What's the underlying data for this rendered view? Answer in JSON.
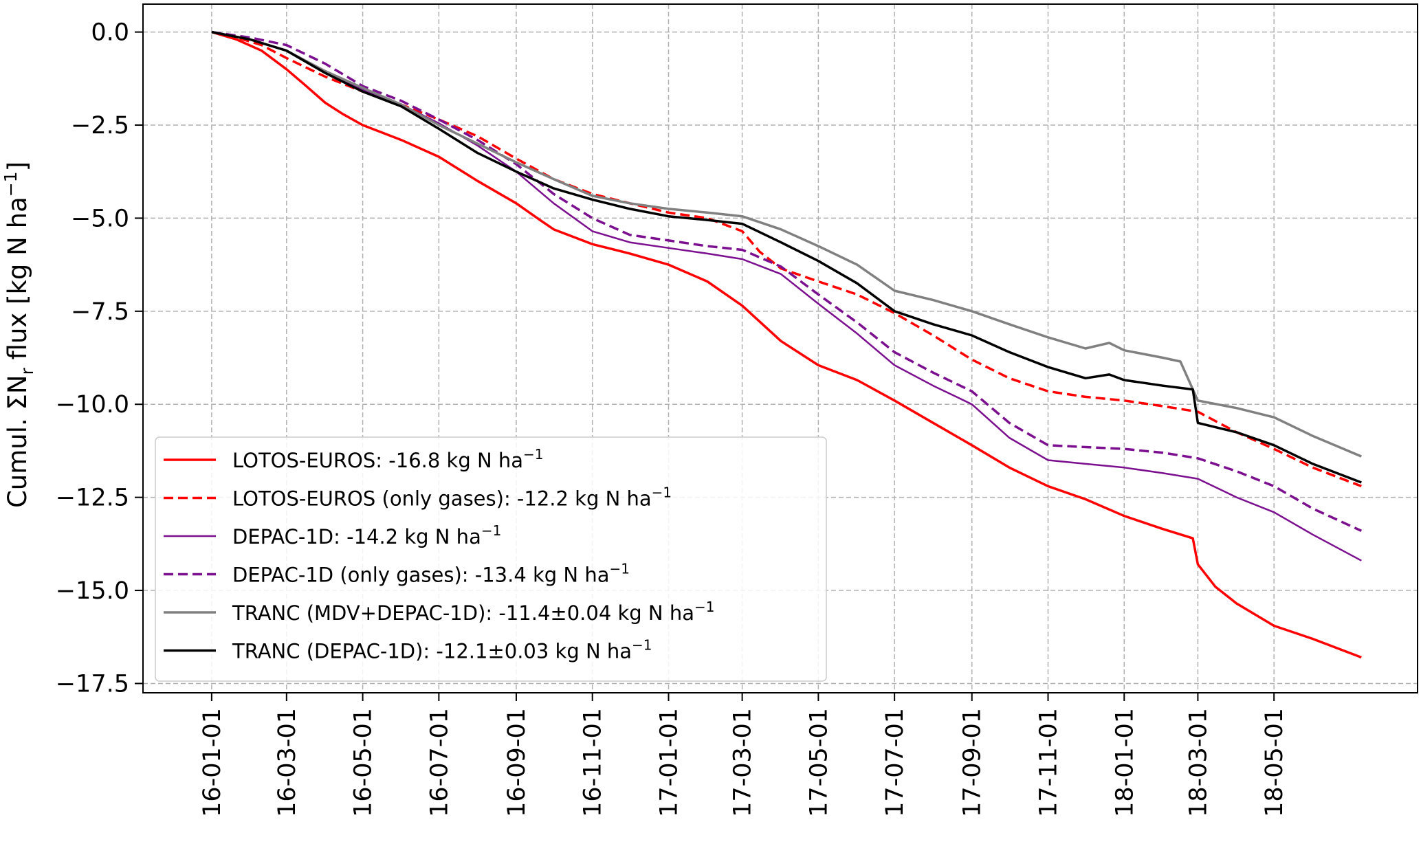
{
  "chart_data": {
    "type": "line",
    "title": "",
    "xlabel": "",
    "ylabel_parts": {
      "prefix": "Cumul. ΣN",
      "sub": "r",
      "middle": " flux [kg N ha",
      "sup": "−1",
      "suffix": "]"
    },
    "ylim": [
      -17.75,
      0.75
    ],
    "xlim": [
      "2015-11-07",
      "2018-08-24"
    ],
    "grid": true,
    "legend_placement": "lower-left",
    "y_ticks": [
      {
        "value": 0.0,
        "label": "0.0"
      },
      {
        "value": -2.5,
        "label": "−2.5"
      },
      {
        "value": -5.0,
        "label": "−5.0"
      },
      {
        "value": -7.5,
        "label": "−7.5"
      },
      {
        "value": -10.0,
        "label": "−10.0"
      },
      {
        "value": -12.5,
        "label": "−12.5"
      },
      {
        "value": -15.0,
        "label": "−15.0"
      },
      {
        "value": -17.5,
        "label": "−17.5"
      }
    ],
    "x_ticks": [
      {
        "date": "2016-01-01",
        "label": "16-01-01"
      },
      {
        "date": "2016-03-01",
        "label": "16-03-01"
      },
      {
        "date": "2016-05-01",
        "label": "16-05-01"
      },
      {
        "date": "2016-07-01",
        "label": "16-07-01"
      },
      {
        "date": "2016-09-01",
        "label": "16-09-01"
      },
      {
        "date": "2016-11-01",
        "label": "16-11-01"
      },
      {
        "date": "2017-01-01",
        "label": "17-01-01"
      },
      {
        "date": "2017-03-01",
        "label": "17-03-01"
      },
      {
        "date": "2017-05-01",
        "label": "17-05-01"
      },
      {
        "date": "2017-07-01",
        "label": "17-07-01"
      },
      {
        "date": "2017-09-01",
        "label": "17-09-01"
      },
      {
        "date": "2017-11-01",
        "label": "17-11-01"
      },
      {
        "date": "2018-01-01",
        "label": "18-01-01"
      },
      {
        "date": "2018-03-01",
        "label": "18-03-01"
      },
      {
        "date": "2018-05-01",
        "label": "18-05-01"
      }
    ],
    "series": [
      {
        "name": "LOTOS-EUROS: -16.8 kg N ha",
        "name_sup": "−1",
        "color": "#ff0000",
        "dash": "solid",
        "width": 3.5,
        "x": [
          "2016-01-01",
          "2016-01-21",
          "2016-02-10",
          "2016-03-01",
          "2016-03-15",
          "2016-04-01",
          "2016-04-15",
          "2016-05-01",
          "2016-06-01",
          "2016-07-01",
          "2016-08-01",
          "2016-09-01",
          "2016-09-20",
          "2016-10-01",
          "2016-11-01",
          "2016-12-01",
          "2017-01-01",
          "2017-02-01",
          "2017-03-01",
          "2017-04-01",
          "2017-05-01",
          "2017-06-01",
          "2017-07-01",
          "2017-08-01",
          "2017-09-01",
          "2017-10-01",
          "2017-11-01",
          "2017-12-01",
          "2018-01-01",
          "2018-02-01",
          "2018-02-25",
          "2018-03-01",
          "2018-03-15",
          "2018-04-01",
          "2018-05-01",
          "2018-06-01",
          "2018-07-10"
        ],
        "y": [
          0.0,
          -0.2,
          -0.5,
          -1.0,
          -1.4,
          -1.9,
          -2.2,
          -2.5,
          -2.9,
          -3.35,
          -4.0,
          -4.6,
          -5.05,
          -5.3,
          -5.7,
          -5.95,
          -6.25,
          -6.7,
          -7.35,
          -8.3,
          -8.95,
          -9.35,
          -9.9,
          -10.5,
          -11.1,
          -11.7,
          -12.2,
          -12.55,
          -13.0,
          -13.35,
          -13.6,
          -14.3,
          -14.9,
          -15.35,
          -15.95,
          -16.3,
          -16.8
        ]
      },
      {
        "name": "LOTOS-EUROS (only gases): -12.2 kg N ha",
        "name_sup": "−1",
        "color": "#ff0000",
        "dash": "dashed",
        "width": 3.5,
        "x": [
          "2016-01-01",
          "2016-01-21",
          "2016-02-10",
          "2016-03-01",
          "2016-04-01",
          "2016-05-01",
          "2016-06-01",
          "2016-07-01",
          "2016-08-01",
          "2016-09-01",
          "2016-10-01",
          "2016-11-01",
          "2016-12-01",
          "2017-01-01",
          "2017-02-01",
          "2017-03-01",
          "2017-03-15",
          "2017-04-01",
          "2017-05-01",
          "2017-06-01",
          "2017-07-01",
          "2017-08-01",
          "2017-09-01",
          "2017-10-01",
          "2017-11-01",
          "2017-12-01",
          "2018-01-01",
          "2018-02-01",
          "2018-03-01",
          "2018-04-01",
          "2018-05-01",
          "2018-06-01",
          "2018-07-10"
        ],
        "y": [
          0.0,
          -0.15,
          -0.35,
          -0.7,
          -1.2,
          -1.6,
          -1.95,
          -2.35,
          -2.8,
          -3.4,
          -3.95,
          -4.35,
          -4.6,
          -4.85,
          -5.0,
          -5.35,
          -5.9,
          -6.35,
          -6.7,
          -7.05,
          -7.55,
          -8.15,
          -8.8,
          -9.3,
          -9.65,
          -9.8,
          -9.9,
          -10.05,
          -10.2,
          -10.75,
          -11.2,
          -11.7,
          -12.2
        ]
      },
      {
        "name": "DEPAC-1D: -14.2 kg N ha",
        "name_sup": "−1",
        "color": "#7b0f8f",
        "dash": "solid",
        "width": 2.5,
        "x": [
          "2016-01-01",
          "2016-02-01",
          "2016-03-01",
          "2016-04-01",
          "2016-05-01",
          "2016-06-01",
          "2016-07-01",
          "2016-08-01",
          "2016-09-01",
          "2016-10-01",
          "2016-11-01",
          "2016-12-01",
          "2017-01-01",
          "2017-02-01",
          "2017-03-01",
          "2017-04-01",
          "2017-05-01",
          "2017-06-01",
          "2017-07-01",
          "2017-08-01",
          "2017-09-01",
          "2017-10-01",
          "2017-11-01",
          "2017-12-01",
          "2018-01-01",
          "2018-02-01",
          "2018-03-01",
          "2018-04-01",
          "2018-05-01",
          "2018-06-01",
          "2018-07-10"
        ],
        "y": [
          0.0,
          -0.2,
          -0.5,
          -1.1,
          -1.55,
          -1.95,
          -2.45,
          -3.05,
          -3.75,
          -4.6,
          -5.35,
          -5.65,
          -5.8,
          -5.95,
          -6.1,
          -6.5,
          -7.3,
          -8.1,
          -8.95,
          -9.5,
          -10.0,
          -10.9,
          -11.5,
          -11.6,
          -11.7,
          -11.85,
          -12.0,
          -12.5,
          -12.9,
          -13.5,
          -14.2
        ]
      },
      {
        "name": "DEPAC-1D (only gases): -13.4 kg N ha",
        "name_sup": "−1",
        "color": "#7b0f8f",
        "dash": "dashed",
        "width": 3.5,
        "x": [
          "2016-01-01",
          "2016-02-01",
          "2016-03-01",
          "2016-04-01",
          "2016-05-01",
          "2016-06-01",
          "2016-07-01",
          "2016-08-01",
          "2016-09-01",
          "2016-10-01",
          "2016-11-01",
          "2016-12-01",
          "2017-01-01",
          "2017-02-01",
          "2017-03-01",
          "2017-04-01",
          "2017-05-01",
          "2017-06-01",
          "2017-07-01",
          "2017-08-01",
          "2017-09-01",
          "2017-10-01",
          "2017-11-01",
          "2017-12-01",
          "2018-01-01",
          "2018-02-01",
          "2018-03-01",
          "2018-04-01",
          "2018-05-01",
          "2018-06-01",
          "2018-07-10"
        ],
        "y": [
          0.0,
          -0.15,
          -0.35,
          -0.85,
          -1.45,
          -1.85,
          -2.35,
          -2.9,
          -3.55,
          -4.35,
          -5.0,
          -5.45,
          -5.6,
          -5.75,
          -5.85,
          -6.3,
          -7.05,
          -7.8,
          -8.6,
          -9.15,
          -9.65,
          -10.5,
          -11.1,
          -11.15,
          -11.2,
          -11.3,
          -11.45,
          -11.8,
          -12.2,
          -12.8,
          -13.4
        ]
      },
      {
        "name": "TRANC (MDV+DEPAC-1D): -11.4±0.04 kg N ha",
        "name_sup": "−1",
        "color": "#808080",
        "dash": "solid",
        "width": 3.5,
        "x": [
          "2016-01-01",
          "2016-02-01",
          "2016-03-01",
          "2016-04-01",
          "2016-05-01",
          "2016-06-01",
          "2016-07-01",
          "2016-08-01",
          "2016-09-01",
          "2016-10-01",
          "2016-11-01",
          "2016-12-01",
          "2017-01-01",
          "2017-02-01",
          "2017-03-01",
          "2017-04-01",
          "2017-05-01",
          "2017-06-01",
          "2017-07-01",
          "2017-08-01",
          "2017-09-01",
          "2017-10-01",
          "2017-11-01",
          "2017-12-01",
          "2017-12-20",
          "2018-01-01",
          "2018-02-01",
          "2018-02-15",
          "2018-03-01",
          "2018-04-01",
          "2018-05-01",
          "2018-06-01",
          "2018-07-10"
        ],
        "y": [
          0.0,
          -0.2,
          -0.5,
          -1.05,
          -1.5,
          -1.95,
          -2.5,
          -3.0,
          -3.5,
          -3.95,
          -4.4,
          -4.6,
          -4.75,
          -4.85,
          -4.95,
          -5.3,
          -5.75,
          -6.25,
          -6.95,
          -7.2,
          -7.5,
          -7.85,
          -8.2,
          -8.5,
          -8.35,
          -8.55,
          -8.75,
          -8.85,
          -9.9,
          -10.1,
          -10.35,
          -10.85,
          -11.4
        ]
      },
      {
        "name": "TRANC (DEPAC-1D): -12.1±0.03 kg N ha",
        "name_sup": "−1",
        "color": "#000000",
        "dash": "solid",
        "width": 3.5,
        "x": [
          "2016-01-01",
          "2016-02-01",
          "2016-03-01",
          "2016-04-01",
          "2016-05-01",
          "2016-06-01",
          "2016-07-01",
          "2016-08-01",
          "2016-09-01",
          "2016-10-01",
          "2016-11-01",
          "2016-12-01",
          "2017-01-01",
          "2017-02-01",
          "2017-03-01",
          "2017-04-01",
          "2017-05-01",
          "2017-06-01",
          "2017-07-01",
          "2017-08-01",
          "2017-09-01",
          "2017-10-01",
          "2017-11-01",
          "2017-12-01",
          "2017-12-20",
          "2018-01-01",
          "2018-02-01",
          "2018-02-25",
          "2018-03-01",
          "2018-04-01",
          "2018-05-01",
          "2018-06-01",
          "2018-07-10"
        ],
        "y": [
          0.0,
          -0.2,
          -0.5,
          -1.1,
          -1.6,
          -2.0,
          -2.6,
          -3.25,
          -3.75,
          -4.2,
          -4.5,
          -4.75,
          -4.95,
          -5.05,
          -5.15,
          -5.65,
          -6.15,
          -6.75,
          -7.5,
          -7.85,
          -8.15,
          -8.6,
          -9.0,
          -9.3,
          -9.2,
          -9.35,
          -9.5,
          -9.6,
          -10.5,
          -10.75,
          -11.1,
          -11.6,
          -12.1
        ]
      }
    ]
  }
}
